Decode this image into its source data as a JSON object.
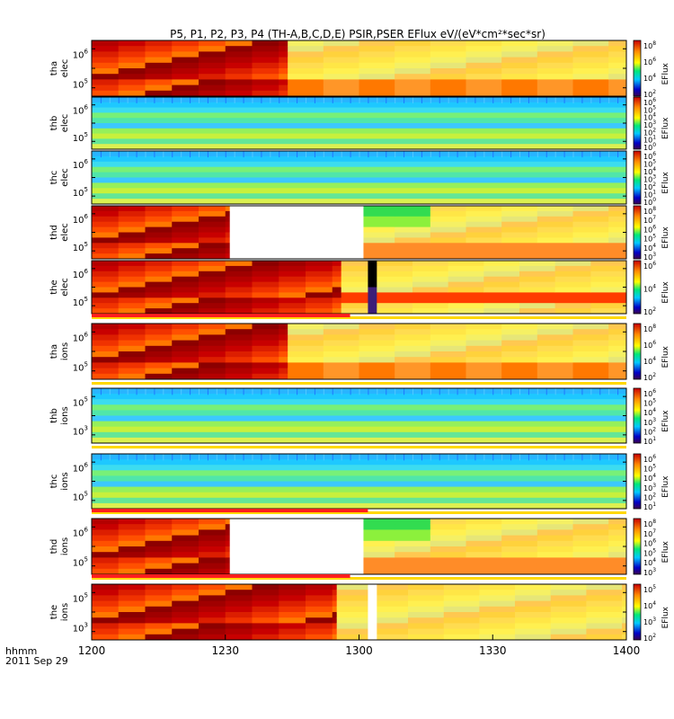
{
  "chart_data": {
    "type": "heatmap",
    "title": "P5, P1, P2, P3, P4 (TH-A,B,C,D,E) PSIR,PSER EFlux eV/(eV*cm²*sec*sr)",
    "xlabel": "hhmm",
    "date_label": "2011 Sep 29",
    "x_tick_labels": [
      "1200",
      "1230",
      "1300",
      "1330",
      "1400"
    ],
    "x_range": [
      "12:00",
      "14:00"
    ],
    "colorbar_label": "EFlux",
    "y_scale": "log",
    "panels": [
      {
        "probe": "tha",
        "species": "elec",
        "y_ticks": [
          {
            "base": "10",
            "exp": "6"
          },
          {
            "base": "10",
            "exp": "5"
          }
        ],
        "cbar_ticks": [
          {
            "base": "10",
            "exp": "8"
          },
          {
            "base": "10",
            "exp": "6"
          },
          {
            "base": "10",
            "exp": "4"
          },
          {
            "base": "10",
            "exp": "2"
          }
        ],
        "pattern": "A",
        "gaps": []
      },
      {
        "probe": "thb",
        "species": "elec",
        "y_ticks": [
          {
            "base": "10",
            "exp": "6"
          },
          {
            "base": "10",
            "exp": "5"
          }
        ],
        "cbar_ticks": [
          {
            "base": "10",
            "exp": "6"
          },
          {
            "base": "10",
            "exp": "5"
          },
          {
            "base": "10",
            "exp": "4"
          },
          {
            "base": "10",
            "exp": "3"
          },
          {
            "base": "10",
            "exp": "2"
          },
          {
            "base": "10",
            "exp": "1"
          },
          {
            "base": "10",
            "exp": "0"
          }
        ],
        "pattern": "B",
        "gaps": []
      },
      {
        "probe": "thc",
        "species": "elec",
        "y_ticks": [
          {
            "base": "10",
            "exp": "6"
          },
          {
            "base": "10",
            "exp": "5"
          }
        ],
        "cbar_ticks": [
          {
            "base": "10",
            "exp": "6"
          },
          {
            "base": "10",
            "exp": "5"
          },
          {
            "base": "10",
            "exp": "4"
          },
          {
            "base": "10",
            "exp": "3"
          },
          {
            "base": "10",
            "exp": "2"
          },
          {
            "base": "10",
            "exp": "1"
          },
          {
            "base": "10",
            "exp": "0"
          }
        ],
        "pattern": "B",
        "gaps": []
      },
      {
        "probe": "thd",
        "species": "elec",
        "y_ticks": [
          {
            "base": "10",
            "exp": "6"
          },
          {
            "base": "10",
            "exp": "5"
          }
        ],
        "cbar_ticks": [
          {
            "base": "10",
            "exp": "8"
          },
          {
            "base": "10",
            "exp": "7"
          },
          {
            "base": "10",
            "exp": "6"
          },
          {
            "base": "10",
            "exp": "5"
          },
          {
            "base": "10",
            "exp": "4"
          },
          {
            "base": "10",
            "exp": "3"
          }
        ],
        "pattern": "D",
        "gaps": [
          [
            "12:31",
            "13:01"
          ]
        ]
      },
      {
        "probe": "the",
        "species": "elec",
        "y_ticks": [
          {
            "base": "10",
            "exp": "6"
          },
          {
            "base": "10",
            "exp": "5"
          }
        ],
        "cbar_ticks": [
          {
            "base": "10",
            "exp": "6"
          },
          {
            "base": "10",
            "exp": "4"
          },
          {
            "base": "10",
            "exp": "2"
          }
        ],
        "pattern": "E",
        "gaps": []
      },
      {
        "probe": "tha",
        "species": "ions",
        "y_ticks": [
          {
            "base": "10",
            "exp": "6"
          },
          {
            "base": "10",
            "exp": "5"
          }
        ],
        "cbar_ticks": [
          {
            "base": "10",
            "exp": "8"
          },
          {
            "base": "10",
            "exp": "6"
          },
          {
            "base": "10",
            "exp": "4"
          },
          {
            "base": "10",
            "exp": "2"
          }
        ],
        "pattern": "A",
        "gaps": []
      },
      {
        "probe": "thb",
        "species": "ions",
        "y_ticks": [
          {
            "base": "10",
            "exp": "5"
          },
          {
            "base": "10",
            "exp": "3"
          }
        ],
        "cbar_ticks": [
          {
            "base": "10",
            "exp": "6"
          },
          {
            "base": "10",
            "exp": "5"
          },
          {
            "base": "10",
            "exp": "4"
          },
          {
            "base": "10",
            "exp": "3"
          },
          {
            "base": "10",
            "exp": "2"
          },
          {
            "base": "10",
            "exp": "1"
          }
        ],
        "pattern": "B",
        "gaps": []
      },
      {
        "probe": "thc",
        "species": "ions",
        "y_ticks": [
          {
            "base": "10",
            "exp": "6"
          },
          {
            "base": "10",
            "exp": "5"
          }
        ],
        "cbar_ticks": [
          {
            "base": "10",
            "exp": "6"
          },
          {
            "base": "10",
            "exp": "5"
          },
          {
            "base": "10",
            "exp": "4"
          },
          {
            "base": "10",
            "exp": "3"
          },
          {
            "base": "10",
            "exp": "2"
          },
          {
            "base": "10",
            "exp": "1"
          }
        ],
        "pattern": "B",
        "gaps": []
      },
      {
        "probe": "thd",
        "species": "ions",
        "y_ticks": [
          {
            "base": "10",
            "exp": "6"
          },
          {
            "base": "10",
            "exp": "5"
          }
        ],
        "cbar_ticks": [
          {
            "base": "10",
            "exp": "8"
          },
          {
            "base": "10",
            "exp": "7"
          },
          {
            "base": "10",
            "exp": "6"
          },
          {
            "base": "10",
            "exp": "5"
          },
          {
            "base": "10",
            "exp": "4"
          },
          {
            "base": "10",
            "exp": "3"
          }
        ],
        "pattern": "D",
        "gaps": [
          [
            "12:31",
            "13:01"
          ]
        ]
      },
      {
        "probe": "the",
        "species": "ions",
        "y_ticks": [
          {
            "base": "10",
            "exp": "5"
          },
          {
            "base": "10",
            "exp": "3"
          }
        ],
        "cbar_ticks": [
          {
            "base": "10",
            "exp": "5"
          },
          {
            "base": "10",
            "exp": "4"
          },
          {
            "base": "10",
            "exp": "3"
          },
          {
            "base": "10",
            "exp": "2"
          }
        ],
        "pattern": "F",
        "gaps": [
          [
            "13:02",
            "13:04"
          ]
        ]
      }
    ],
    "mode_bars": [
      {
        "after_panel": 4,
        "red_until": "12:58"
      },
      {
        "after_panel": 5,
        "red_until": "12:00"
      },
      {
        "after_panel": 6,
        "red_until": "12:00"
      },
      {
        "after_panel": 7,
        "red_until": "13:02"
      },
      {
        "after_panel": 8,
        "red_until": "12:58"
      }
    ],
    "colors": {
      "saturated": "#c80000",
      "low": "#ffd23c",
      "quiet": "#3cc8ff"
    }
  }
}
